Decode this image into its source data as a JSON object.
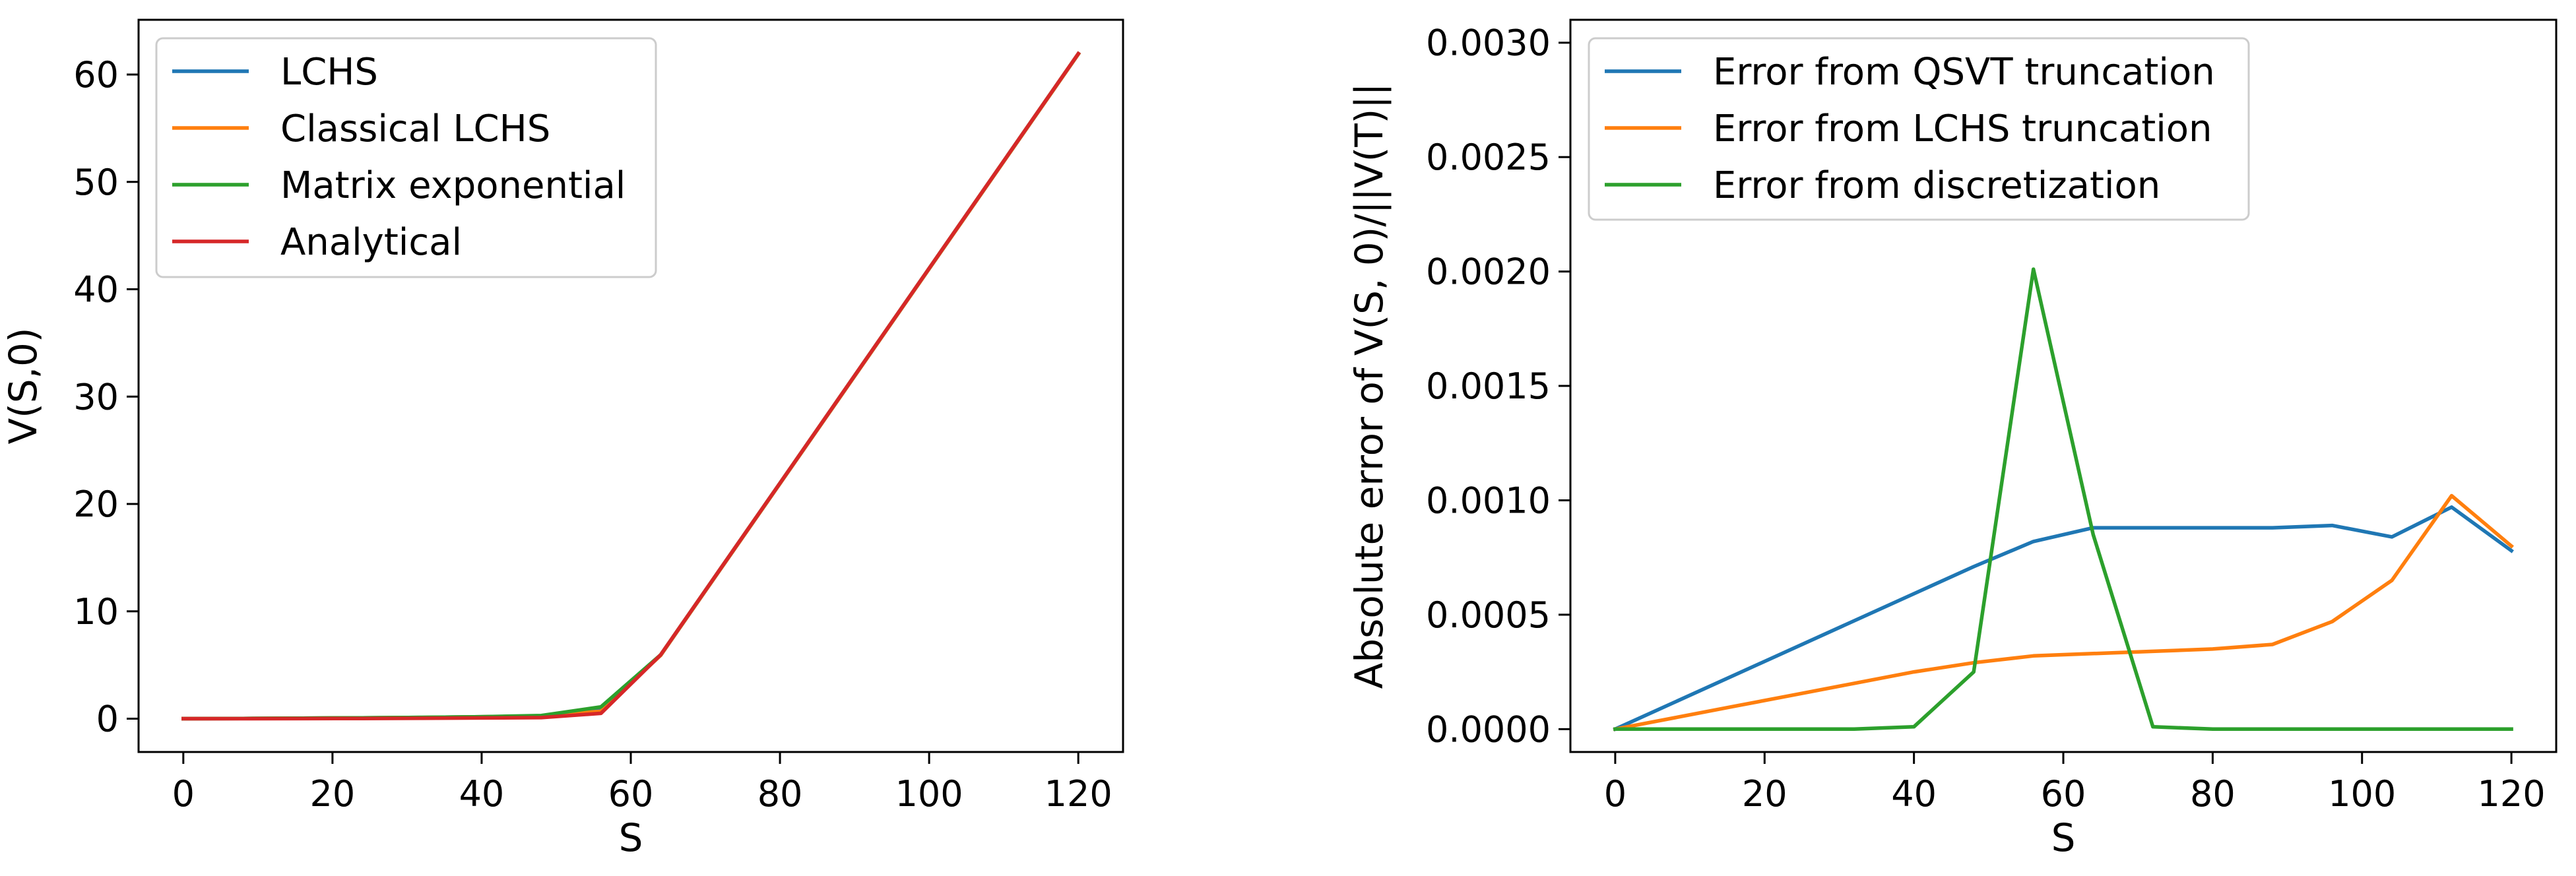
{
  "chart_data": [
    {
      "type": "line",
      "xlabel": "S",
      "ylabel": "V(S,0)",
      "xlim": [
        -6,
        126
      ],
      "ylim": [
        -3.1,
        65.1
      ],
      "xticks": [
        "0",
        "20",
        "40",
        "60",
        "80",
        "100",
        "120"
      ],
      "yticks": [
        "0",
        "10",
        "20",
        "30",
        "40",
        "50",
        "60"
      ],
      "grid": false,
      "legend_position": "top-left",
      "series": [
        {
          "name": "LCHS",
          "color": "#1f77b4",
          "x": [
            0,
            8,
            16,
            24,
            32,
            40,
            48,
            56,
            64,
            72,
            80,
            88,
            96,
            104,
            112,
            120
          ],
          "y": [
            0.0,
            0.02,
            0.05,
            0.08,
            0.12,
            0.18,
            0.25,
            0.8,
            5.9,
            13.9,
            21.9,
            29.9,
            37.9,
            45.9,
            53.9,
            61.9
          ]
        },
        {
          "name": "Classical LCHS",
          "color": "#ff7f0e",
          "x": [
            0,
            8,
            16,
            24,
            32,
            40,
            48,
            56,
            64,
            72,
            80,
            88,
            96,
            104,
            112,
            120
          ],
          "y": [
            0.0,
            0.02,
            0.05,
            0.08,
            0.12,
            0.18,
            0.25,
            0.7,
            5.9,
            13.9,
            21.9,
            29.9,
            37.9,
            45.9,
            53.9,
            61.9
          ]
        },
        {
          "name": "Matrix exponential",
          "color": "#2ca02c",
          "x": [
            0,
            8,
            16,
            24,
            32,
            40,
            48,
            56,
            64,
            72,
            80,
            88,
            96,
            104,
            112,
            120
          ],
          "y": [
            0.0,
            0.02,
            0.05,
            0.08,
            0.12,
            0.18,
            0.3,
            1.1,
            5.95,
            13.95,
            21.95,
            29.95,
            37.95,
            45.95,
            53.95,
            61.95
          ]
        },
        {
          "name": "Analytical",
          "color": "#d62728",
          "x": [
            0,
            8,
            16,
            24,
            32,
            40,
            48,
            56,
            64,
            72,
            80,
            88,
            96,
            104,
            112,
            120
          ],
          "y": [
            0.0,
            0.0,
            0.01,
            0.02,
            0.04,
            0.07,
            0.1,
            0.5,
            5.95,
            13.95,
            21.95,
            29.95,
            37.95,
            45.95,
            53.95,
            61.95
          ]
        }
      ]
    },
    {
      "type": "line",
      "xlabel": "S",
      "ylabel": "Absolute error of V(S, 0)/||V(T)||",
      "xlim": [
        -6,
        126
      ],
      "ylim": [
        -0.0001,
        0.0031
      ],
      "xticks": [
        "0",
        "20",
        "40",
        "60",
        "80",
        "100",
        "120"
      ],
      "yticks": [
        "0.0000",
        "0.0005",
        "0.0010",
        "0.0015",
        "0.0020",
        "0.0025",
        "0.0030"
      ],
      "grid": false,
      "legend_position": "top-left",
      "series": [
        {
          "name": "Error from QSVT truncation",
          "color": "#1f77b4",
          "x": [
            0,
            48,
            56,
            64,
            72,
            80,
            88,
            96,
            104,
            112,
            120
          ],
          "y": [
            0.0,
            0.00071,
            0.00082,
            0.00088,
            0.00088,
            0.00088,
            0.00088,
            0.00089,
            0.00084,
            0.00097,
            0.00078
          ]
        },
        {
          "name": "Error from LCHS truncation",
          "color": "#ff7f0e",
          "x": [
            0,
            8,
            16,
            24,
            32,
            40,
            48,
            56,
            64,
            72,
            80,
            88,
            96,
            104,
            112,
            120
          ],
          "y": [
            0.0,
            5e-05,
            0.0001,
            0.00015,
            0.0002,
            0.00025,
            0.00029,
            0.00032,
            0.00033,
            0.00034,
            0.00035,
            0.00037,
            0.00047,
            0.00065,
            0.00102,
            0.0008
          ]
        },
        {
          "name": "Error from discretization",
          "color": "#2ca02c",
          "x": [
            0,
            8,
            16,
            24,
            32,
            40,
            48,
            56,
            64,
            72,
            80,
            88,
            96,
            104,
            112,
            120
          ],
          "y": [
            0.0,
            0.0,
            0.0,
            0.0,
            0.0,
            1e-05,
            0.00025,
            0.00201,
            0.00085,
            1e-05,
            0.0,
            0.0,
            0.0,
            0.0,
            0.0,
            0.0
          ]
        }
      ]
    }
  ]
}
